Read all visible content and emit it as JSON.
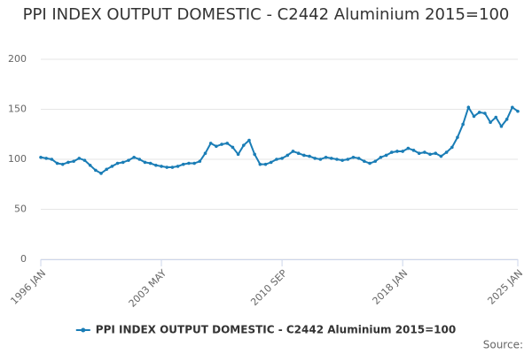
{
  "chart_data": {
    "type": "line",
    "title": "PPI INDEX OUTPUT DOMESTIC - C2442 Aluminium 2015=100",
    "categories": [
      "1996 JAN",
      null,
      null,
      null,
      null,
      null,
      null,
      null,
      null,
      null,
      null,
      null,
      null,
      null,
      null,
      null,
      null,
      null,
      null,
      null,
      null,
      null,
      "2003 MAY",
      null,
      null,
      null,
      null,
      null,
      null,
      null,
      null,
      null,
      null,
      null,
      null,
      null,
      null,
      null,
      null,
      null,
      null,
      null,
      null,
      null,
      "2010 SEP",
      null,
      null,
      null,
      null,
      null,
      null,
      null,
      null,
      null,
      null,
      null,
      null,
      null,
      null,
      null,
      null,
      null,
      null,
      null,
      null,
      null,
      "2018 JAN",
      null,
      null,
      null,
      null,
      null,
      null,
      null,
      null,
      null,
      null,
      null,
      null,
      null,
      null,
      null,
      null,
      null,
      null,
      null,
      null,
      "2025 JAN"
    ],
    "series": [
      {
        "name": "PPI INDEX OUTPUT DOMESTIC - C2442 Aluminium 2015=100",
        "color": "#1a7db6",
        "values": [
          102,
          101,
          100,
          96,
          95,
          97,
          98,
          101,
          99,
          94,
          89,
          86,
          90,
          93,
          96,
          97,
          99,
          102,
          100,
          97,
          96,
          94,
          93,
          92,
          92,
          93,
          95,
          96,
          96,
          98,
          106,
          116,
          113,
          115,
          116,
          112,
          105,
          114,
          119,
          105,
          95,
          95,
          97,
          100,
          101,
          104,
          108,
          106,
          104,
          103,
          101,
          100,
          102,
          101,
          100,
          99,
          100,
          102,
          101,
          98,
          96,
          98,
          102,
          104,
          107,
          108,
          108,
          111,
          109,
          106,
          107,
          105,
          106,
          103,
          107,
          112,
          122,
          135,
          152,
          143,
          147,
          146,
          137,
          142,
          133,
          140,
          152,
          148
        ]
      }
    ],
    "ylim": [
      0,
      200
    ],
    "yticks": [
      0,
      50,
      100,
      150,
      200
    ],
    "grid": true,
    "legend": "bottom",
    "source_label": "Source:"
  }
}
